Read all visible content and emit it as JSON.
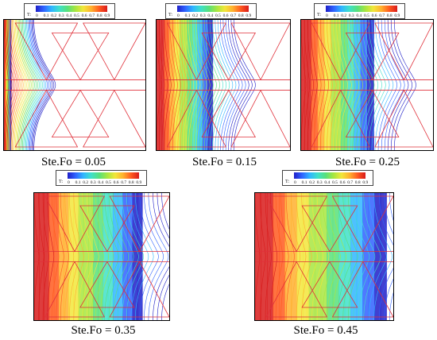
{
  "legend": {
    "label": "T:",
    "ticks": [
      "0",
      "0.1",
      "0.2",
      "0.3",
      "0.4",
      "0.5",
      "0.6",
      "0.7",
      "0.8",
      "0.9"
    ],
    "colormap": [
      "#1f1fc8",
      "#2f62ff",
      "#2fb6ff",
      "#3fe0c8",
      "#58e07a",
      "#a8e640",
      "#f2e63a",
      "#ffb02e",
      "#ff5a1f",
      "#d81b1b"
    ]
  },
  "geometry_color": "#e0303a",
  "panels": [
    {
      "caption": "Ste.Fo = 0.05",
      "melt_fraction": 0.05
    },
    {
      "caption": "Ste.Fo = 0.15",
      "melt_fraction": 0.42
    },
    {
      "caption": "Ste.Fo = 0.25",
      "melt_fraction": 0.55
    },
    {
      "caption": "Ste.Fo = 0.35",
      "melt_fraction": 0.8
    },
    {
      "caption": "Ste.Fo = 0.45",
      "melt_fraction": 0.95
    }
  ]
}
